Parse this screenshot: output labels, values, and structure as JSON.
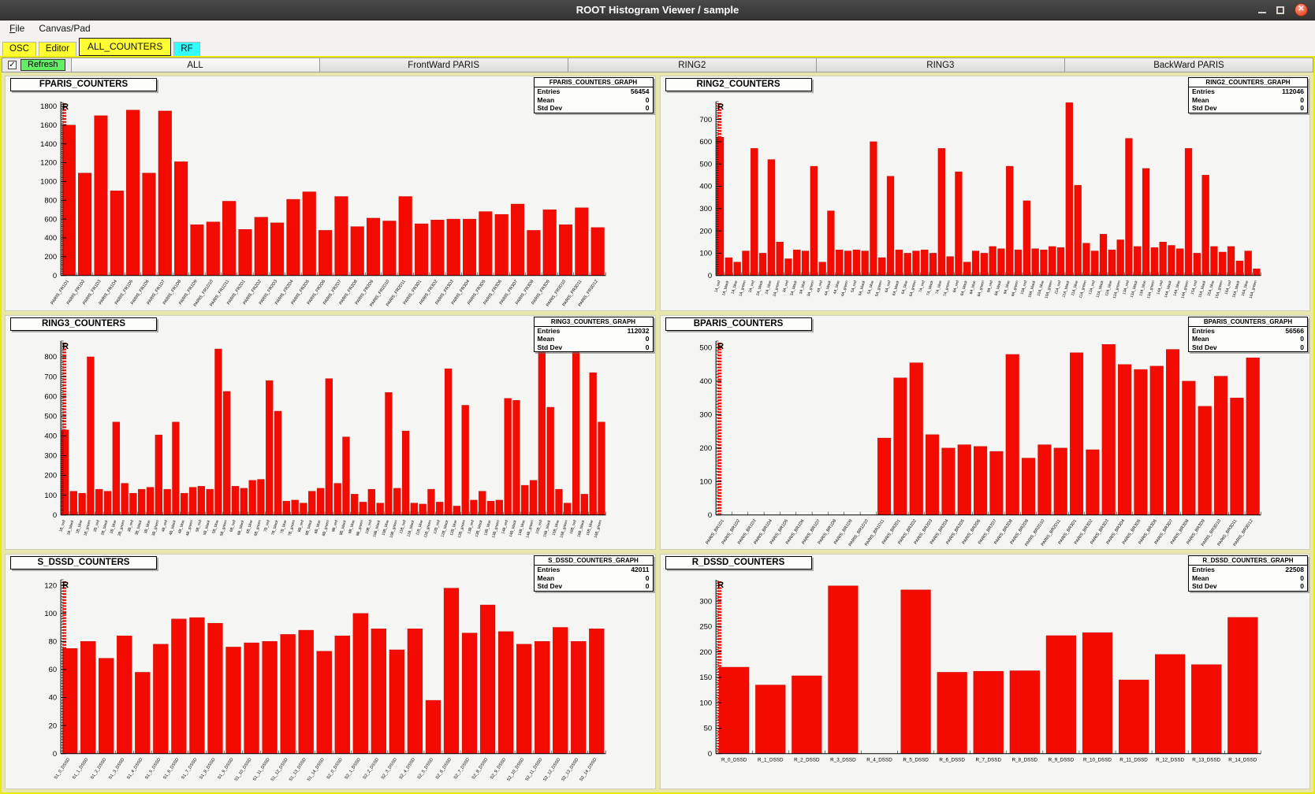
{
  "window": {
    "title": "ROOT Histogram Viewer / sample"
  },
  "menu": {
    "items": [
      {
        "label": "File",
        "underline_first": true
      },
      {
        "label": "Canvas/Pad",
        "underline_first": false
      }
    ]
  },
  "tabs_primary": [
    {
      "label": "OSC",
      "color": "#ffff33",
      "active": false
    },
    {
      "label": "Editor",
      "color": "#ffff33",
      "active": false
    },
    {
      "label": "ALL_COUNTERS",
      "color": "#ffff33",
      "active": true
    },
    {
      "label": "RF",
      "color": "#33ffff",
      "active": false
    }
  ],
  "toolbar": {
    "refresh": "Refresh",
    "checkbox_checked": true,
    "check_glyph": "✓"
  },
  "tabs_secondary": [
    {
      "label": "ALL",
      "active": true
    },
    {
      "label": "FrontWard PARIS",
      "active": false
    },
    {
      "label": "RING2",
      "active": false
    },
    {
      "label": "RING3",
      "active": false
    },
    {
      "label": "BackWard PARIS",
      "active": false
    }
  ],
  "titlebar_icons": {
    "minimize": "minimize",
    "maximize": "maximize",
    "close": "✕"
  },
  "colors": {
    "accent_yellow": "#e9e90a",
    "tab_cyan": "#33ffff",
    "refresh_green": "#63ef63",
    "bar_red": "#f40b00",
    "titlebar_dark": "#3c3c3c",
    "close_orange": "#ee4e30"
  },
  "chart_data": [
    {
      "type": "bar",
      "title": "FPARIS_COUNTERS",
      "pad_title": "FPARIS_COUNTERS",
      "stats": {
        "title": "FPARIS_COUNTERS_GRAPH",
        "rows": [
          [
            "Entries",
            "56454"
          ],
          [
            "Mean",
            "0"
          ],
          [
            "Std Dev",
            "0"
          ]
        ]
      },
      "xlabel": "",
      "ylabel": "",
      "ylim": [
        0,
        1850
      ],
      "ytick": 200,
      "bar_color": "#f40b00",
      "marker": "R",
      "categories": [
        "PARIS_FR1D1",
        "PARIS_FR1D2",
        "PARIS_FR1D3",
        "PARIS_FR1D4",
        "PARIS_FR1D5",
        "PARIS_FR1D6",
        "PARIS_FR1D7",
        "PARIS_FR1D8",
        "PARIS_FR1D9",
        "PARIS_FR1D10",
        "PARIS_FR1D11",
        "PARIS_FR2D1",
        "PARIS_FR2D2",
        "PARIS_FR2D3",
        "PARIS_FR2D4",
        "PARIS_FR2D5",
        "PARIS_FR2D6",
        "PARIS_FR2D7",
        "PARIS_FR2D8",
        "PARIS_FR2D9",
        "PARIS_FR2D10",
        "PARIS_FR2D11",
        "PARIS_FR3D1",
        "PARIS_FR3D2",
        "PARIS_FR3D3",
        "PARIS_FR3D4",
        "PARIS_FR3D5",
        "PARIS_FR3D6",
        "PARIS_FR3D7",
        "PARIS_FR3D8",
        "PARIS_FR3D9",
        "PARIS_FR3D10",
        "PARIS_FR3D11",
        "PARIS_FR3D12"
      ],
      "values": [
        1600,
        1090,
        1700,
        900,
        1760,
        1090,
        1750,
        1210,
        540,
        570,
        790,
        490,
        620,
        560,
        810,
        890,
        480,
        840,
        520,
        610,
        580,
        840,
        550,
        590,
        600,
        600,
        680,
        650,
        760,
        480,
        700,
        540,
        720,
        510
      ]
    },
    {
      "type": "bar",
      "title": "RING2_COUNTERS",
      "pad_title": "RING2_COUNTERS",
      "stats": {
        "title": "RING2_COUNTERS_GRAPH",
        "rows": [
          [
            "Entries",
            "112046"
          ],
          [
            "Mean",
            "0"
          ],
          [
            "Std Dev",
            "0"
          ]
        ]
      },
      "xlabel": "",
      "ylabel": "",
      "ylim": [
        0,
        780
      ],
      "ytick": 100,
      "bar_color": "#f40b00",
      "marker": "R",
      "categories": [
        "1A_red",
        "1A_black",
        "1A_blue",
        "1A_green",
        "2A_red",
        "2A_black",
        "2A_blue",
        "2A_green",
        "3A_red",
        "3A_black",
        "3A_blue",
        "3A_green",
        "4A_red",
        "4A_black",
        "4A_blue",
        "4A_green",
        "5A_red",
        "5A_black",
        "5A_blue",
        "5A_green",
        "6A_red",
        "6A_black",
        "6A_blue",
        "6A_green",
        "7A_red",
        "7A_black",
        "7A_blue",
        "7A_green",
        "8A_red",
        "8A_black",
        "8A_blue",
        "8A_green",
        "9A_red",
        "9A_black",
        "9A_blue",
        "9A_green",
        "10A_red",
        "10A_black",
        "10A_blue",
        "10A_green",
        "11A_red",
        "11A_black",
        "11A_blue",
        "11A_green",
        "12A_red",
        "12A_black",
        "12A_blue",
        "12A_green",
        "13A_red",
        "13A_black",
        "13A_blue",
        "13A_green",
        "14A_red",
        "14A_black",
        "14A_blue",
        "14A_green",
        "15A_red",
        "15A_black",
        "15A_blue",
        "15A_green",
        "16A_red",
        "16A_black",
        "16A_blue",
        "16A_green"
      ],
      "values": [
        620,
        80,
        60,
        110,
        570,
        100,
        520,
        150,
        75,
        115,
        110,
        490,
        60,
        290,
        115,
        110,
        115,
        110,
        600,
        80,
        445,
        115,
        100,
        110,
        115,
        100,
        570,
        85,
        465,
        60,
        110,
        100,
        130,
        120,
        490,
        115,
        335,
        120,
        115,
        130,
        125,
        775,
        405,
        145,
        110,
        185,
        115,
        160,
        615,
        130,
        480,
        125,
        150,
        135,
        120,
        570,
        100,
        450,
        130,
        105,
        130,
        65,
        110,
        30
      ]
    },
    {
      "type": "bar",
      "title": "RING3_COUNTERS",
      "pad_title": "RING3_COUNTERS",
      "stats": {
        "title": "RING3_COUNTERS_GRAPH",
        "rows": [
          [
            "Entries",
            "112032"
          ],
          [
            "Mean",
            "0"
          ],
          [
            "Std Dev",
            "0"
          ]
        ]
      },
      "xlabel": "",
      "ylabel": "",
      "ylim": [
        0,
        880
      ],
      "ytick": 100,
      "bar_color": "#f40b00",
      "marker": "R",
      "categories": [
        "1B_red",
        "1B_black",
        "1B_blue",
        "1B_green",
        "2B_red",
        "2B_black",
        "2B_blue",
        "2B_green",
        "3B_red",
        "3B_black",
        "3B_blue",
        "3B_green",
        "4B_red",
        "4B_black",
        "4B_blue",
        "4B_green",
        "5B_red",
        "5B_black",
        "5B_blue",
        "5B_green",
        "6B_red",
        "6B_black",
        "6B_blue",
        "6B_green",
        "7B_red",
        "7B_black",
        "7B_blue",
        "7B_green",
        "8B_red",
        "8B_black",
        "8B_blue",
        "8B_green",
        "9B_red",
        "9B_black",
        "9B_blue",
        "9B_green",
        "10B_red",
        "10B_black",
        "10B_blue",
        "10B_green",
        "11B_red",
        "11B_black",
        "11B_blue",
        "11B_green",
        "12B_red",
        "12B_black",
        "12B_blue",
        "12B_green",
        "13B_red",
        "13B_black",
        "13B_blue",
        "13B_green",
        "14B_red",
        "14B_black",
        "14B_blue",
        "14B_green",
        "15B_red",
        "15B_black",
        "15B_blue",
        "15B_green",
        "16B_red",
        "16B_black",
        "16B_blue",
        "16B_green"
      ],
      "values": [
        430,
        120,
        110,
        800,
        130,
        120,
        470,
        160,
        110,
        130,
        140,
        405,
        130,
        470,
        110,
        140,
        145,
        130,
        840,
        625,
        145,
        135,
        175,
        180,
        680,
        525,
        70,
        75,
        60,
        120,
        135,
        690,
        160,
        395,
        105,
        65,
        130,
        60,
        620,
        135,
        425,
        60,
        55,
        130,
        65,
        740,
        45,
        555,
        75,
        120,
        70,
        75,
        590,
        580,
        150,
        175,
        835,
        545,
        130,
        60,
        865,
        105,
        720,
        470
      ]
    },
    {
      "type": "bar",
      "title": "BPARIS_COUNTERS",
      "pad_title": "BPARIS_COUNTERS",
      "stats": {
        "title": "BPARIS_COUNTERS_GRAPH",
        "rows": [
          [
            "Entries",
            "56566"
          ],
          [
            "Mean",
            "0"
          ],
          [
            "Std Dev",
            "0"
          ]
        ]
      },
      "xlabel": "",
      "ylabel": "",
      "ylim": [
        0,
        520
      ],
      "ytick": 100,
      "bar_color": "#f40b00",
      "marker": "R",
      "categories": [
        "PARIS_BR1D1",
        "PARIS_BR1D2",
        "PARIS_BR1D3",
        "PARIS_BR1D4",
        "PARIS_BR1D5",
        "PARIS_BR1D6",
        "PARIS_BR1D7",
        "PARIS_BR1D8",
        "PARIS_BR1D9",
        "PARIS_BR1D10",
        "PARIS_BR1D11",
        "PARIS_BR2D1",
        "PARIS_BR2D2",
        "PARIS_BR2D3",
        "PARIS_BR2D4",
        "PARIS_BR2D5",
        "PARIS_BR2D6",
        "PARIS_BR2D7",
        "PARIS_BR2D8",
        "PARIS_BR2D9",
        "PARIS_BR2D10",
        "PARIS_BR2D11",
        "PARIS_BR3D1",
        "PARIS_BR3D2",
        "PARIS_BR3D3",
        "PARIS_BR3D4",
        "PARIS_BR3D5",
        "PARIS_BR3D6",
        "PARIS_BR3D7",
        "PARIS_BR3D8",
        "PARIS_BR3D9",
        "PARIS_BR3D10",
        "PARIS_BR3D11",
        "PARIS_BR3D12"
      ],
      "values": [
        0,
        0,
        0,
        0,
        0,
        0,
        0,
        0,
        0,
        0,
        230,
        410,
        455,
        240,
        200,
        210,
        205,
        190,
        480,
        170,
        210,
        200,
        485,
        195,
        510,
        450,
        435,
        445,
        495,
        400,
        325,
        415,
        350,
        470
      ]
    },
    {
      "type": "bar",
      "title": "S_DSSD_COUNTERS",
      "pad_title": "S_DSSD_COUNTERS",
      "stats": {
        "title": "S_DSSD_COUNTERS_GRAPH",
        "rows": [
          [
            "Entries",
            "42011"
          ],
          [
            "Mean",
            "0"
          ],
          [
            "Std Dev",
            "0"
          ]
        ]
      },
      "xlabel": "",
      "ylabel": "",
      "ylim": [
        0,
        124
      ],
      "ytick": 20,
      "bar_color": "#f40b00",
      "marker": "R",
      "categories": [
        "S1_0_DSSD",
        "S1_1_DSSD",
        "S1_2_DSSD",
        "S1_3_DSSD",
        "S1_4_DSSD",
        "S1_5_DSSD",
        "S1_6_DSSD",
        "S1_7_DSSD",
        "S1_8_DSSD",
        "S1_9_DSSD",
        "S1_10_DSSD",
        "S1_11_DSSD",
        "S1_12_DSSD",
        "S1_13_DSSD",
        "S1_14_DSSD",
        "S2_0_DSSD",
        "S2_1_DSSD",
        "S2_2_DSSD",
        "S2_3_DSSD",
        "S2_4_DSSD",
        "S2_5_DSSD",
        "S2_6_DSSD",
        "S2_7_DSSD",
        "S2_8_DSSD",
        "S2_9_DSSD",
        "S2_10_DSSD",
        "S2_11_DSSD",
        "S2_12_DSSD",
        "S2_13_DSSD",
        "S2_14_DSSD"
      ],
      "values": [
        75,
        80,
        68,
        84,
        58,
        78,
        96,
        97,
        93,
        76,
        79,
        80,
        85,
        88,
        73,
        84,
        100,
        89,
        74,
        89,
        38,
        118,
        86,
        106,
        87,
        78,
        80,
        90,
        80,
        89
      ]
    },
    {
      "type": "bar",
      "title": "R_DSSD_COUNTERS",
      "pad_title": "R_DSSD_COUNTERS",
      "stats": {
        "title": "R_DSSD_COUNTERS_GRAPH",
        "rows": [
          [
            "Entries",
            "22508"
          ],
          [
            "Mean",
            "0"
          ],
          [
            "Std Dev",
            "0"
          ]
        ]
      },
      "xlabel": "",
      "ylabel": "",
      "ylim": [
        0,
        342
      ],
      "ytick": 50,
      "bar_color": "#f40b00",
      "marker": "R",
      "categories": [
        "R_0_DSSD",
        "R_1_DSSD",
        "R_2_DSSD",
        "R_3_DSSD",
        "R_4_DSSD",
        "R_5_DSSD",
        "R_6_DSSD",
        "R_7_DSSD",
        "R_8_DSSD",
        "R_9_DSSD",
        "R_10_DSSD",
        "R_11_DSSD",
        "R_12_DSSD",
        "R_13_DSSD",
        "R_14_DSSD"
      ],
      "values": [
        170,
        135,
        153,
        330,
        0,
        322,
        160,
        162,
        163,
        232,
        238,
        145,
        195,
        175,
        268
      ]
    }
  ]
}
